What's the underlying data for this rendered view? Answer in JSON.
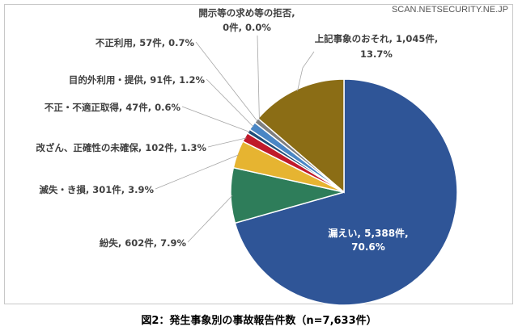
{
  "watermark": "SCAN.NETSECURITY.NE.JP",
  "caption": "図2：発生事象別の事故報告件数（n=7,633件）",
  "colors": {
    "leak": "#2f5597",
    "lost": "#2e7d5a",
    "damage": "#e6b431",
    "tamper": "#c0192a",
    "improper": "#1f4e79",
    "purpose": "#4a86c5",
    "misuse": "#7f7f7f",
    "refusal": "#a6a6a6",
    "concern": "#8b6d15"
  },
  "chart_data": {
    "type": "pie",
    "title": "",
    "total_label": "n=7,633件",
    "slices": [
      {
        "key": "leak",
        "label": "漏えい, 5,388件,",
        "pct_label": "70.6%",
        "value": 5388,
        "percent": 70.6
      },
      {
        "key": "lost",
        "label": "紛失, 602件, 7.9%",
        "value": 602,
        "percent": 7.9
      },
      {
        "key": "damage",
        "label": "滅失・き損, 301件, 3.9%",
        "value": 301,
        "percent": 3.9
      },
      {
        "key": "tamper",
        "label": "改ざん、正確性の未確保, 102件, 1.3%",
        "value": 102,
        "percent": 1.3
      },
      {
        "key": "improper",
        "label": "不正・不適正取得, 47件, 0.6%",
        "value": 47,
        "percent": 0.6
      },
      {
        "key": "purpose",
        "label": "目的外利用・提供, 91件, 1.2%",
        "value": 91,
        "percent": 1.2
      },
      {
        "key": "misuse",
        "label": "不正利用, 57件, 0.7%",
        "value": 57,
        "percent": 0.7
      },
      {
        "key": "refusal",
        "label": "開示等の求め等の拒否,",
        "label2": "0件, 0.0%",
        "value": 0,
        "percent": 0.0
      },
      {
        "key": "concern",
        "label": "上記事象のおそれ, 1,045件,",
        "label2": "13.7%",
        "value": 1045,
        "percent": 13.7
      }
    ]
  }
}
